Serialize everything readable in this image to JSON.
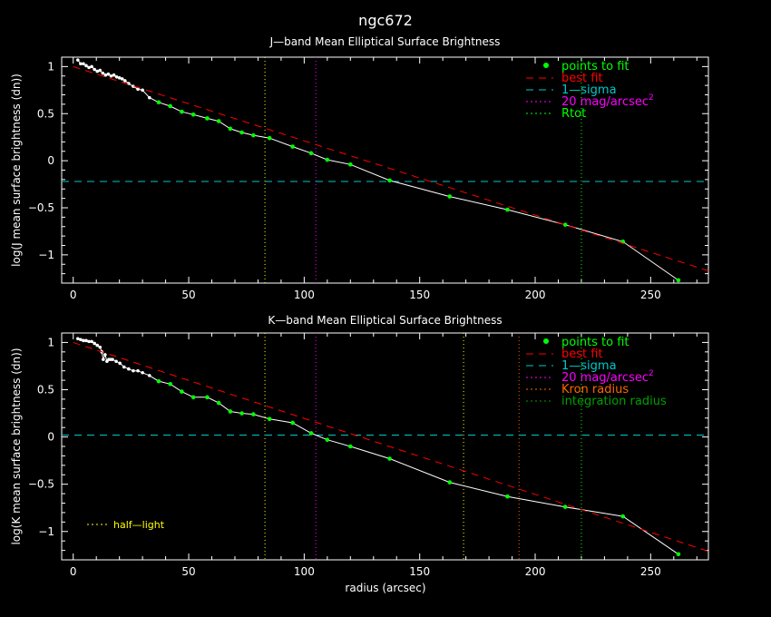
{
  "colors": {
    "background": "#000000",
    "axis": "#ffffff",
    "data_line": "#ffffff",
    "fit_points": "#00ff00",
    "best_fit": "#ff0000",
    "sigma": "#00c8c8",
    "mag20": "#ff00ff",
    "rtot": "#00ff00",
    "kron": "#ff6600",
    "integration": "#00a000",
    "half_light": "#ffff00"
  },
  "figure_title": "ngc672",
  "xlabel": "radius (arcsec)",
  "chart_data": [
    {
      "type": "line",
      "title": "J—band Mean Elliptical Surface Brightness",
      "xlabel": "",
      "ylabel": "log(J mean surface brightness (dn))",
      "xlim": [
        -5,
        275
      ],
      "ylim": [
        -1.3,
        1.1
      ],
      "xticks": [
        0,
        50,
        100,
        150,
        200,
        250
      ],
      "yticks": [
        -1,
        -0.5,
        0,
        0.5,
        1
      ],
      "ytick_labels": [
        "−1",
        "−0.5",
        "0",
        "0.5",
        "1"
      ],
      "series": [
        {
          "name": "points to fit",
          "x": [
            2,
            3.2,
            4.4,
            5.6,
            6.8,
            8,
            9.2,
            10.4,
            11.6,
            12.8,
            14,
            15.2,
            16.4,
            17.6,
            18.8,
            20,
            21.2,
            22.4,
            24,
            26,
            28,
            30,
            33,
            37,
            42,
            47,
            52,
            58,
            63,
            68,
            73,
            78,
            85,
            95,
            103,
            110,
            120,
            137,
            163,
            188,
            213,
            238,
            262
          ],
          "y": [
            1.07,
            1.03,
            1.03,
            1.01,
            0.99,
            1.0,
            0.97,
            0.95,
            0.96,
            0.93,
            0.91,
            0.92,
            0.9,
            0.91,
            0.89,
            0.88,
            0.87,
            0.85,
            0.82,
            0.79,
            0.76,
            0.75,
            0.67,
            0.62,
            0.58,
            0.52,
            0.49,
            0.45,
            0.42,
            0.34,
            0.3,
            0.27,
            0.24,
            0.15,
            0.08,
            0.01,
            -0.04,
            -0.21,
            -0.38,
            -0.52,
            -0.68,
            -0.86,
            -1.27
          ],
          "fit_start_index": 23
        },
        {
          "name": "best fit",
          "x": [
            0,
            275
          ],
          "y": [
            1.0,
            -1.17
          ]
        }
      ],
      "hlines": [
        {
          "name": "1—sigma",
          "y": -0.22
        }
      ],
      "vlines": [
        {
          "name": "20 mag/arcsec",
          "x": 105
        },
        {
          "name": "Rtot",
          "x": 220
        },
        {
          "name": "integration radius",
          "x": 83
        }
      ],
      "legend": {
        "placement": "top-right",
        "entries": [
          {
            "label": "points to fit",
            "style": "dot",
            "color": "#00ff00"
          },
          {
            "label": "best fit",
            "style": "dash",
            "color": "#ff0000"
          },
          {
            "label": "1—sigma",
            "style": "dash",
            "color": "#00c8c8"
          },
          {
            "label": "20 mag/arcsec",
            "sup": "2",
            "style": "dot-line",
            "color": "#ff00ff"
          },
          {
            "label": "Rtot",
            "style": "dot-line",
            "color": "#00ff00"
          }
        ]
      }
    },
    {
      "type": "line",
      "title": "K—band Mean Elliptical Surface Brightness",
      "xlabel": "radius (arcsec)",
      "ylabel": "log(K mean surface brightness (dn))",
      "xlim": [
        -5,
        275
      ],
      "ylim": [
        -1.3,
        1.1
      ],
      "xticks": [
        0,
        50,
        100,
        150,
        200,
        250
      ],
      "yticks": [
        -1,
        -0.5,
        0,
        0.5,
        1
      ],
      "ytick_labels": [
        "−1",
        "−0.5",
        "0",
        "0.5",
        "1"
      ],
      "series": [
        {
          "name": "points to fit",
          "x": [
            2,
            3.2,
            4.4,
            5.6,
            6.8,
            8,
            9.2,
            10.4,
            11.6,
            12.4,
            13,
            13.8,
            14.6,
            15.4,
            16.2,
            17,
            18.6,
            20.2,
            22,
            24,
            26,
            28,
            30,
            33,
            37,
            42,
            47,
            52,
            58,
            63,
            68,
            73,
            78,
            85,
            95,
            103,
            110,
            120,
            137,
            163,
            188,
            213,
            238,
            262
          ],
          "y": [
            1.04,
            1.03,
            1.02,
            1.02,
            1.01,
            1.01,
            0.99,
            0.97,
            0.95,
            0.9,
            0.82,
            0.87,
            0.8,
            0.82,
            0.82,
            0.82,
            0.8,
            0.78,
            0.74,
            0.72,
            0.7,
            0.7,
            0.68,
            0.65,
            0.59,
            0.56,
            0.48,
            0.42,
            0.42,
            0.36,
            0.27,
            0.25,
            0.24,
            0.19,
            0.15,
            0.04,
            -0.03,
            -0.1,
            -0.23,
            -0.48,
            -0.63,
            -0.74,
            -0.84,
            -1.24
          ],
          "fit_start_index": 24
        },
        {
          "name": "best fit",
          "x": [
            0,
            275
          ],
          "y": [
            1.0,
            -1.21
          ]
        }
      ],
      "hlines": [
        {
          "name": "1—sigma",
          "y": 0.02
        }
      ],
      "vlines": [
        {
          "name": "20 mag/arcsec",
          "x": 105
        },
        {
          "name": "Kron radius",
          "x": 193
        },
        {
          "name": "integration radius",
          "x": 220
        },
        {
          "name": "half-light",
          "x": 83
        },
        {
          "name": "half-light",
          "x": 169
        }
      ],
      "legend": {
        "placement": "top-right",
        "entries": [
          {
            "label": "points to fit",
            "style": "dot",
            "color": "#00ff00"
          },
          {
            "label": "best fit",
            "style": "dash",
            "color": "#ff0000"
          },
          {
            "label": "1—sigma",
            "style": "dash",
            "color": "#00c8c8"
          },
          {
            "label": "20 mag/arcsec",
            "sup": "2",
            "style": "dot-line",
            "color": "#ff00ff"
          },
          {
            "label": "Kron radius",
            "style": "dot-line",
            "color": "#ff6600"
          },
          {
            "label": "integration radius",
            "style": "dot-line",
            "color": "#00a000"
          }
        ]
      },
      "annotation": {
        "label": "half—light",
        "style": "dot-line",
        "color": "#ffff00",
        "placement": "bottom-left"
      }
    }
  ]
}
